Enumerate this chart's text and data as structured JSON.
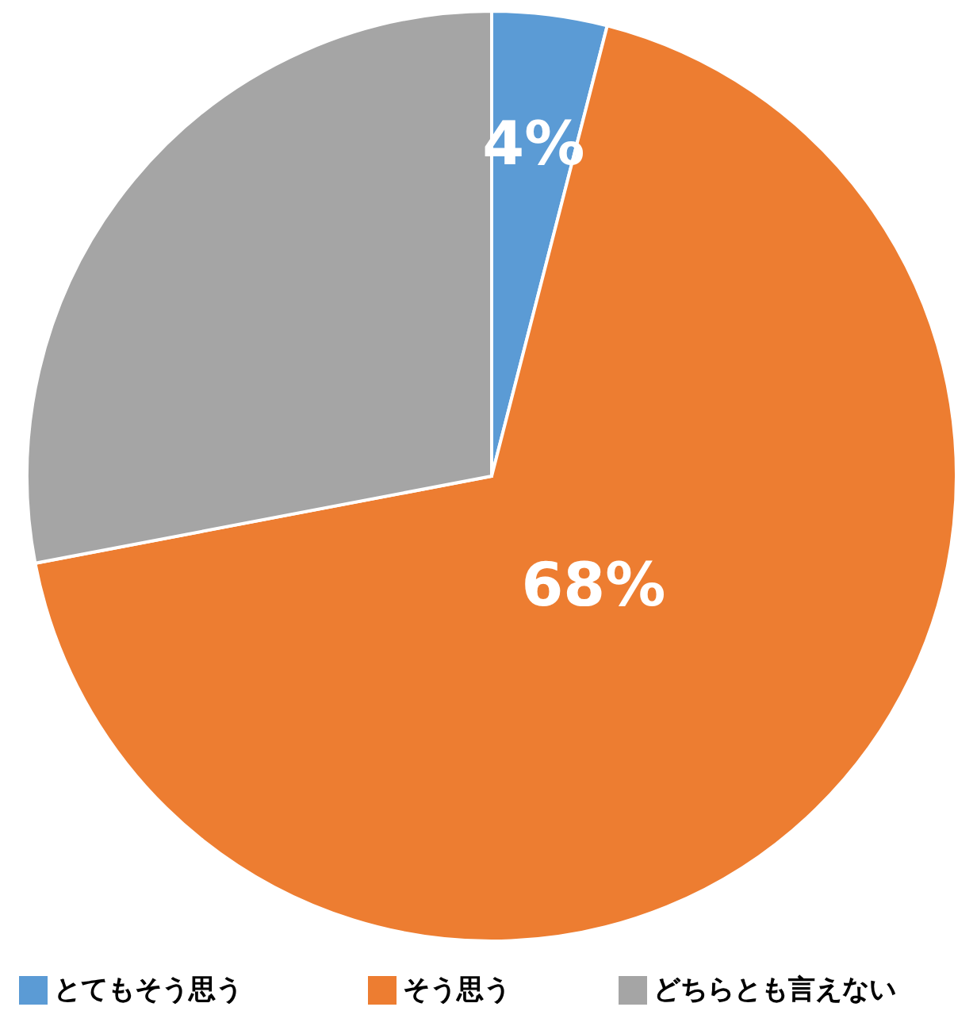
{
  "chart_data": {
    "type": "pie",
    "categories": [
      "とてもそう思う",
      "そう思う",
      "どちらとも言えない"
    ],
    "values": [
      4,
      68,
      28
    ],
    "colors": [
      "#5b9bd5",
      "#ed7d31",
      "#a5a5a5"
    ],
    "value_labels": [
      "4%",
      "68%",
      null
    ],
    "legend": "bottom"
  }
}
